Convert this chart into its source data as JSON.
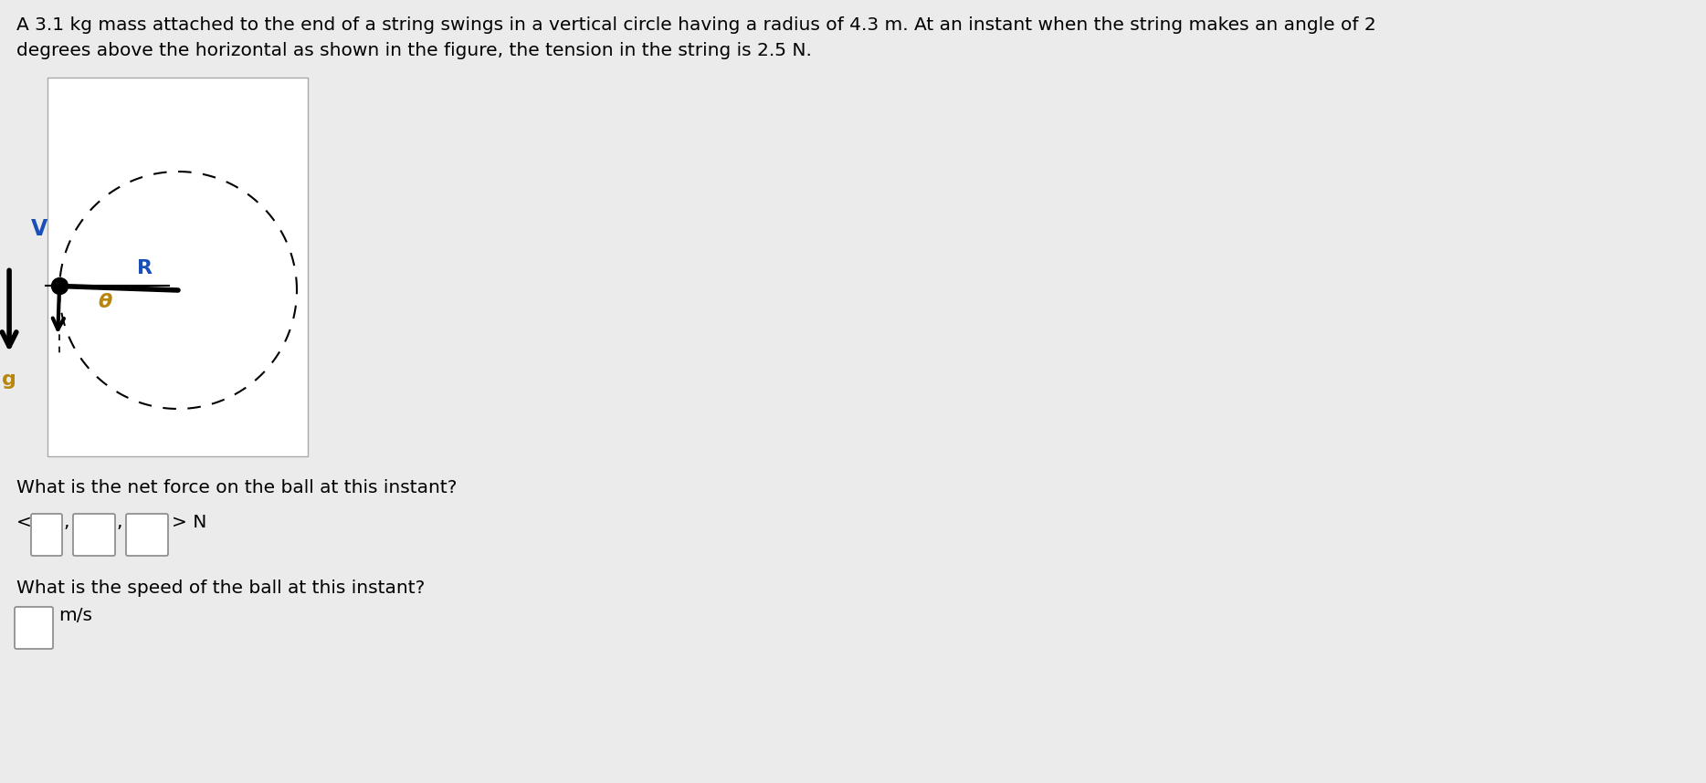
{
  "bg_color": "#ebebeb",
  "panel_color": "#ffffff",
  "text_color": "#000000",
  "title_line1": "A 3.1 kg mass attached to the end of a string swings in a vertical circle having a radius of 4.3 m. At an instant when the string makes an angle of 2",
  "title_line2": "degrees above the horizontal as shown in the figure, the tension in the string is 2.5 N.",
  "title_fontsize": 14.5,
  "question1": "What is the net force on the ball at this instant?",
  "question2": "What is the speed of the ball at this instant?",
  "q_fontsize": 14.5,
  "label_V": "V",
  "label_R": "R",
  "label_theta": "θ",
  "label_g": "g",
  "label_color_VR": "#1a4fba",
  "label_color_theta": "#b8860b",
  "label_color_g": "#b8860b",
  "unit_N": "> N",
  "unit_ms": "m/s"
}
